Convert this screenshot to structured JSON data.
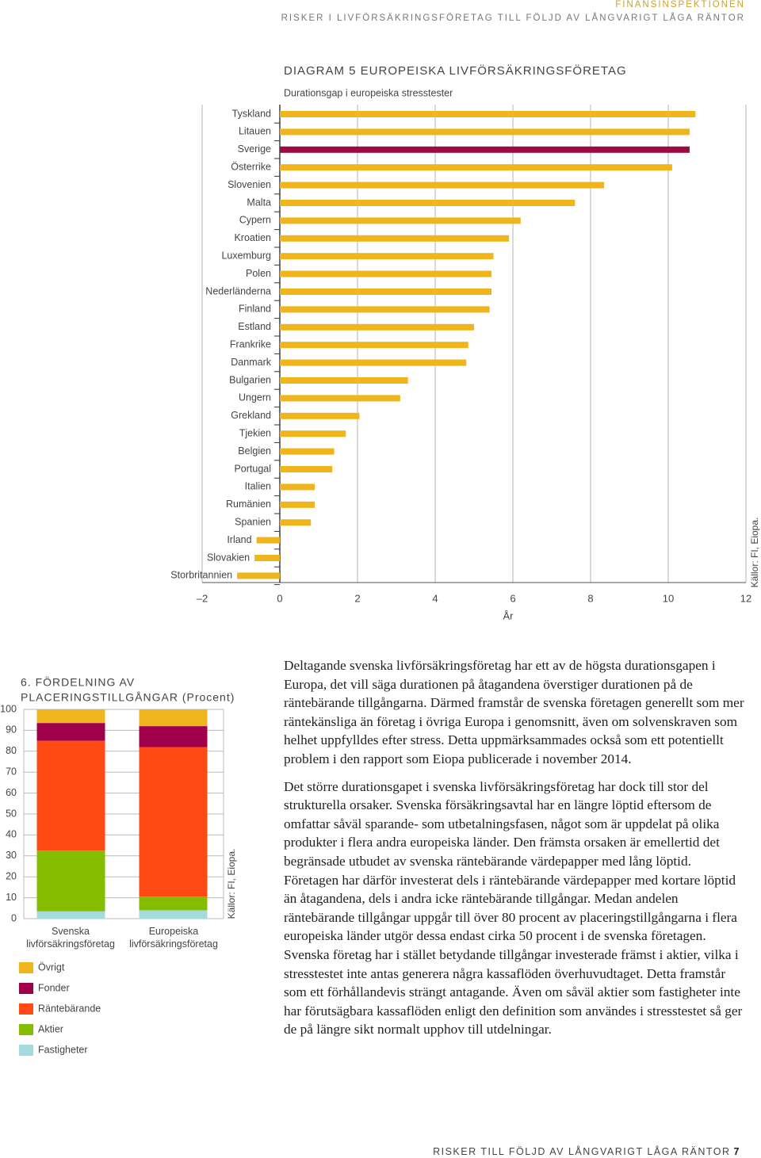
{
  "header": {
    "organization": "FINANSINSPEKTIONEN",
    "title": "RISKER I LIVFÖRSÄKRINGSFÖRETAG TILL FÖLJD AV LÅNGVARIGT LÅGA RÄNTOR"
  },
  "chart_data": [
    {
      "type": "barh",
      "title": "DIAGRAM 5 EUROPEISKA LIVFÖRSÄKRINGSFÖRETAG",
      "subtitle": "Durationsgap i europeiska stresstester",
      "x_label": "År",
      "source": "Källor: FI, Eiopa.",
      "categories": [
        "Tyskland",
        "Litauen",
        "Sverige",
        "Österrike",
        "Slovenien",
        "Malta",
        "Cypern",
        "Kroatien",
        "Luxemburg",
        "Polen",
        "Nederländerna",
        "Finland",
        "Estland",
        "Frankrike",
        "Danmark",
        "Bulgarien",
        "Ungern",
        "Grekland",
        "Tjekien",
        "Belgien",
        "Portugal",
        "Italien",
        "Rumänien",
        "Spanien",
        "Irland",
        "Slovakien",
        "Storbritannien"
      ],
      "values": [
        10.7,
        10.55,
        10.55,
        10.1,
        8.35,
        7.6,
        6.2,
        5.9,
        5.5,
        5.45,
        5.45,
        5.4,
        5.0,
        4.85,
        4.8,
        3.3,
        3.1,
        2.05,
        1.7,
        1.4,
        1.35,
        0.9,
        0.9,
        0.8,
        -0.6,
        -0.65,
        -1.1
      ],
      "colors": [
        "#f0b41c",
        "#f0b41c",
        "#9b0a45",
        "#f0b41c",
        "#f0b41c",
        "#f0b41c",
        "#f0b41c",
        "#f0b41c",
        "#f0b41c",
        "#f0b41c",
        "#f0b41c",
        "#f0b41c",
        "#f0b41c",
        "#f0b41c",
        "#f0b41c",
        "#f0b41c",
        "#f0b41c",
        "#f0b41c",
        "#f0b41c",
        "#f0b41c",
        "#f0b41c",
        "#f0b41c",
        "#f0b41c",
        "#f0b41c",
        "#f0b41c",
        "#f0b41c",
        "#f0b41c"
      ],
      "xlim": [
        -2,
        12
      ],
      "xticks": [
        {
          "value": -2,
          "label": "–2"
        },
        0,
        2,
        4,
        6,
        8,
        10,
        12
      ],
      "grid": true
    },
    {
      "type": "stacked_bar",
      "title": [
        "6. FÖRDELNING AV",
        "PLACERINGSTILLGÅNGAR (Procent)"
      ],
      "source": "Källor: FI, Eiopa.",
      "categories": [
        "Svenska livförsäkringsföretag",
        "Europeiska livförsäkringsföretag"
      ],
      "series": [
        {
          "name": "Fastigheter",
          "color": "#a6dbde",
          "values": [
            3.5,
            4
          ]
        },
        {
          "name": "Aktier",
          "color": "#84bd00",
          "values": [
            29,
            6.5
          ]
        },
        {
          "name": "Räntebärande",
          "color": "#ff4a14",
          "values": [
            52.5,
            71.5
          ]
        },
        {
          "name": "Fonder",
          "color": "#a0004a",
          "values": [
            8.5,
            10
          ]
        },
        {
          "name": "Övrigt",
          "color": "#f0b41c",
          "values": [
            6.5,
            8
          ]
        }
      ],
      "ylim": [
        0,
        100
      ],
      "yticks": [
        0,
        10,
        20,
        30,
        40,
        50,
        60,
        70,
        80,
        90,
        100
      ],
      "grid": true
    }
  ],
  "body": {
    "paragraphs": [
      "Deltagande svenska livförsäkringsföretag har ett av de högsta durationsgapen i Europa, det vill säga durationen på åtagandena överstiger durationen på de räntebärande tillgångarna. Därmed framstår de svenska företagen generellt som mer räntekänsliga än företag i övriga Europa i genomsnitt, även om solvenskraven som helhet uppfylldes efter stress. Detta uppmärksammades också som ett potentiellt problem i den rapport som Eiopa publicerade i november 2014.",
      "Det större durationsgapet i svenska livförsäkringsföretag har dock till stor del strukturella orsaker. Svenska försäkringsavtal har en längre löptid eftersom de omfattar såväl sparande- som utbetalningsfasen, något som är uppdelat på olika produkter i flera andra europeiska länder. Den främsta orsaken är emellertid det begränsade utbudet av svenska räntebärande värdepapper med lång löptid. Företagen har därför investerat dels i räntebärande värdepapper med kortare löptid än åtagandena, dels i andra icke räntebärande tillgångar. Medan andelen räntebärande tillgångar uppgår till över 80 procent av placeringstillgångarna i flera europeiska länder utgör dessa endast cirka 50 procent i de svenska företagen. Svenska företag har i stället betydande tillgångar investerade främst i aktier, vilka i stresstestet inte antas generera några kassaflöden överhuvudtaget. Detta framstår som ett förhållandevis strängt antagande. Även om såväl aktier som fastigheter inte har förutsägbara kassaflöden enligt den definition som användes i stresstestet så ger de på längre sikt normalt upphov till utdelningar."
    ]
  },
  "footer": {
    "title": "RISKER TILL FÖLJD AV LÅNGVARIGT LÅGA RÄNTOR",
    "page": "7"
  }
}
